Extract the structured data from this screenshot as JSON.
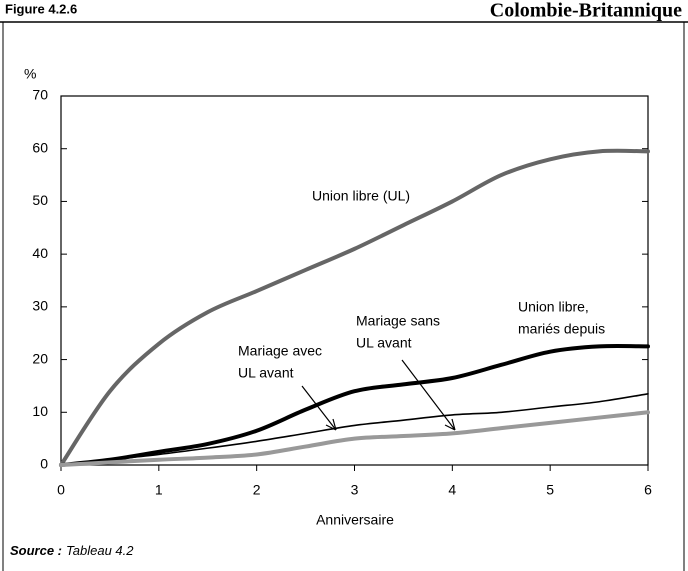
{
  "chart_data": {
    "type": "line",
    "figure": "Figure 4.2.6",
    "title": "Colombie-Britannique",
    "ylabel": "%",
    "xlabel": "Anniversaire",
    "source_label": "Source :",
    "source": "Tableau 4.2",
    "x": [
      0,
      0.5,
      1,
      1.5,
      2,
      2.5,
      3,
      3.5,
      4,
      4.5,
      5,
      5.5,
      6
    ],
    "series": [
      {
        "name": "Union libre (UL)",
        "color": "#666666",
        "width": 4,
        "values": [
          0,
          14,
          23,
          29,
          33,
          37,
          41,
          45.5,
          50,
          55,
          58,
          59.5,
          59.5
        ]
      },
      {
        "label_lines": [
          "Union libre,",
          "mariés depuis"
        ],
        "color": "#000000",
        "width": 4,
        "values": [
          0,
          1,
          2.5,
          4,
          6.5,
          10.5,
          14,
          15.3,
          16.5,
          19,
          21.5,
          22.5,
          22.5
        ]
      },
      {
        "label_lines": [
          "Mariage avec",
          "UL avant"
        ],
        "color": "#000000",
        "width": 1.6,
        "values": [
          0,
          1,
          2,
          3.2,
          4.5,
          6,
          7.5,
          8.5,
          9.5,
          10,
          11,
          12,
          13.5
        ]
      },
      {
        "label_lines": [
          "Mariage sans",
          "UL avant"
        ],
        "color": "#999999",
        "width": 4,
        "values": [
          0,
          0.5,
          1,
          1.4,
          2,
          3.5,
          5,
          5.5,
          6,
          7,
          8,
          9,
          10
        ]
      }
    ],
    "xlim": [
      0,
      6
    ],
    "xticks": [
      0,
      1,
      2,
      3,
      4,
      5,
      6
    ],
    "ylim": [
      0,
      70
    ],
    "yticks": [
      0,
      10,
      20,
      30,
      40,
      50,
      60,
      70
    ]
  }
}
